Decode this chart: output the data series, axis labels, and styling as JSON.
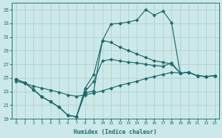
{
  "xlabel": "Humidex (Indice chaleur)",
  "background_color": "#cce8e8",
  "grid_color": "#a8cccc",
  "line_color": "#1e6b6b",
  "xlim": [
    -0.5,
    23.5
  ],
  "ylim": [
    19,
    36
  ],
  "xticks": [
    0,
    1,
    2,
    3,
    4,
    5,
    6,
    7,
    8,
    9,
    10,
    11,
    12,
    13,
    14,
    15,
    16,
    17,
    18,
    19,
    20,
    21,
    22,
    23
  ],
  "yticks": [
    19,
    21,
    23,
    25,
    27,
    29,
    31,
    33,
    35
  ],
  "series1_x": [
    0,
    1,
    2,
    3,
    4,
    5,
    6,
    7,
    8,
    9,
    10,
    11,
    12,
    13,
    14,
    15,
    16,
    17,
    18,
    19,
    20,
    21,
    22,
    23
  ],
  "series1_y": [
    24.8,
    24.3,
    23.3,
    22.2,
    21.5,
    20.7,
    19.5,
    19.3,
    22.8,
    23.1,
    30.5,
    32.9,
    33.0,
    33.2,
    33.5,
    35.0,
    34.2,
    34.8,
    33.1,
    25.7,
    25.8,
    25.3,
    25.2,
    25.3
  ],
  "series2_x": [
    0,
    1,
    2,
    3,
    4,
    5,
    6,
    7,
    8,
    9,
    10,
    11,
    12,
    13,
    14,
    15,
    16,
    17,
    18,
    19,
    20,
    21,
    22,
    23
  ],
  "series2_y": [
    24.8,
    24.3,
    23.3,
    22.2,
    21.5,
    20.7,
    19.5,
    19.3,
    23.5,
    25.5,
    30.5,
    30.2,
    29.5,
    29.0,
    28.5,
    28.0,
    27.5,
    27.3,
    27.0,
    25.7,
    25.8,
    25.3,
    25.2,
    25.3
  ],
  "series3_x": [
    0,
    1,
    2,
    3,
    4,
    5,
    6,
    7,
    8,
    9,
    10,
    11,
    12,
    13,
    14,
    15,
    16,
    17,
    18,
    19,
    20,
    21,
    22,
    23
  ],
  "series3_y": [
    24.8,
    24.3,
    23.3,
    22.2,
    21.5,
    20.7,
    19.5,
    19.3,
    23.0,
    24.5,
    27.5,
    27.7,
    27.5,
    27.3,
    27.2,
    27.0,
    26.8,
    26.7,
    27.2,
    25.7,
    25.8,
    25.3,
    25.2,
    25.3
  ],
  "series4_x": [
    0,
    1,
    2,
    3,
    4,
    5,
    6,
    7,
    8,
    9,
    10,
    11,
    12,
    13,
    14,
    15,
    16,
    17,
    18,
    19,
    20,
    21,
    22,
    23
  ],
  "series4_y": [
    24.5,
    24.2,
    23.8,
    23.5,
    23.2,
    22.9,
    22.5,
    22.3,
    22.5,
    22.8,
    23.1,
    23.5,
    23.9,
    24.2,
    24.5,
    24.9,
    25.2,
    25.5,
    25.8,
    25.7,
    25.8,
    25.3,
    25.2,
    25.3
  ]
}
